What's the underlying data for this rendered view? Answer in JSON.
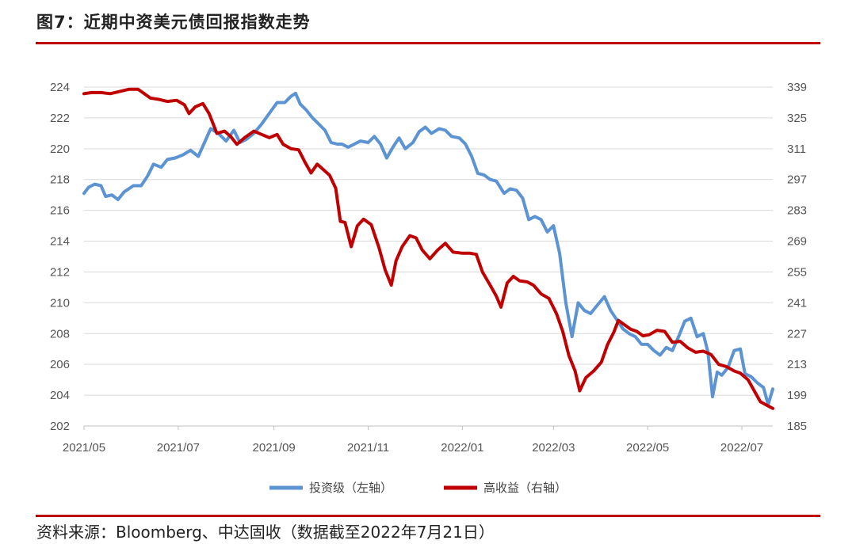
{
  "figure": {
    "title": "图7：近期中资美元债回报指数走势",
    "source": "资料来源：Bloomberg、中达固收（数据截至2022年7月21日）"
  },
  "colors": {
    "investment_grade": "#5b93d3",
    "high_yield": "#c00000",
    "grid": "#d9d9d9",
    "rule": "#c00000"
  },
  "chart_data": {
    "type": "line",
    "title": "",
    "x_ticks": [
      "2021/05",
      "2021/07",
      "2021/09",
      "2021/11",
      "2022/01",
      "2022/03",
      "2022/05",
      "2022/07"
    ],
    "x_range": [
      "2021-05-01",
      "2022-07-21"
    ],
    "y_left": {
      "ticks": [
        "202",
        "204",
        "206",
        "208",
        "210",
        "212",
        "214",
        "216",
        "218",
        "220",
        "222",
        "224"
      ],
      "range": [
        202,
        224
      ]
    },
    "y_right": {
      "ticks": [
        "185",
        "199",
        "213",
        "227",
        "241",
        "255",
        "269",
        "283",
        "297",
        "311",
        "325",
        "339"
      ],
      "range": [
        185,
        339
      ]
    },
    "grid": true,
    "legend_position": "bottom",
    "series": [
      {
        "name": "投资级（左轴）",
        "axis": "left",
        "color": "#5b93d3",
        "points": [
          [
            "2021-05-01",
            217.1
          ],
          [
            "2021-05-04",
            217.5
          ],
          [
            "2021-05-08",
            217.7
          ],
          [
            "2021-05-12",
            217.6
          ],
          [
            "2021-05-15",
            216.9
          ],
          [
            "2021-05-19",
            217.0
          ],
          [
            "2021-05-23",
            216.7
          ],
          [
            "2021-05-27",
            217.2
          ],
          [
            "2021-06-02",
            217.6
          ],
          [
            "2021-06-07",
            217.6
          ],
          [
            "2021-06-11",
            218.2
          ],
          [
            "2021-06-15",
            219.0
          ],
          [
            "2021-06-20",
            218.8
          ],
          [
            "2021-06-24",
            219.3
          ],
          [
            "2021-06-29",
            219.4
          ],
          [
            "2021-07-04",
            219.6
          ],
          [
            "2021-07-09",
            219.9
          ],
          [
            "2021-07-14",
            219.5
          ],
          [
            "2021-07-18",
            220.4
          ],
          [
            "2021-07-22",
            221.3
          ],
          [
            "2021-07-27",
            221.0
          ],
          [
            "2021-08-01",
            220.5
          ],
          [
            "2021-08-06",
            221.2
          ],
          [
            "2021-08-10",
            220.4
          ],
          [
            "2021-08-14",
            220.6
          ],
          [
            "2021-08-19",
            221.0
          ],
          [
            "2021-08-24",
            221.6
          ],
          [
            "2021-08-29",
            222.3
          ],
          [
            "2021-09-03",
            223.0
          ],
          [
            "2021-09-08",
            223.0
          ],
          [
            "2021-09-12",
            223.4
          ],
          [
            "2021-09-15",
            223.6
          ],
          [
            "2021-09-18",
            222.9
          ],
          [
            "2021-09-22",
            222.5
          ],
          [
            "2021-09-26",
            222.0
          ],
          [
            "2021-09-30",
            221.6
          ],
          [
            "2021-10-04",
            221.2
          ],
          [
            "2021-10-08",
            220.4
          ],
          [
            "2021-10-12",
            220.3
          ],
          [
            "2021-10-15",
            220.3
          ],
          [
            "2021-10-19",
            220.1
          ],
          [
            "2021-10-23",
            220.3
          ],
          [
            "2021-10-27",
            220.5
          ],
          [
            "2021-11-01",
            220.4
          ],
          [
            "2021-11-05",
            220.8
          ],
          [
            "2021-11-09",
            220.3
          ],
          [
            "2021-11-13",
            219.4
          ],
          [
            "2021-11-17",
            220.1
          ],
          [
            "2021-11-21",
            220.7
          ],
          [
            "2021-11-25",
            220.0
          ],
          [
            "2021-11-30",
            220.4
          ],
          [
            "2021-12-04",
            221.1
          ],
          [
            "2021-12-08",
            221.4
          ],
          [
            "2021-12-12",
            221.0
          ],
          [
            "2021-12-17",
            221.3
          ],
          [
            "2021-12-21",
            221.2
          ],
          [
            "2021-12-25",
            220.8
          ],
          [
            "2021-12-30",
            220.7
          ],
          [
            "2022-01-03",
            220.3
          ],
          [
            "2022-01-07",
            219.5
          ],
          [
            "2022-01-11",
            218.4
          ],
          [
            "2022-01-15",
            218.3
          ],
          [
            "2022-01-19",
            218.0
          ],
          [
            "2022-01-23",
            217.9
          ],
          [
            "2022-01-28",
            217.1
          ],
          [
            "2022-02-01",
            217.4
          ],
          [
            "2022-02-05",
            217.3
          ],
          [
            "2022-02-09",
            216.8
          ],
          [
            "2022-02-13",
            215.4
          ],
          [
            "2022-02-17",
            215.6
          ],
          [
            "2022-02-21",
            215.4
          ],
          [
            "2022-02-25",
            214.6
          ],
          [
            "2022-03-01",
            215.0
          ],
          [
            "2022-03-05",
            213.2
          ],
          [
            "2022-03-09",
            210.0
          ],
          [
            "2022-03-13",
            207.8
          ],
          [
            "2022-03-17",
            210.0
          ],
          [
            "2022-03-21",
            209.5
          ],
          [
            "2022-03-25",
            209.3
          ],
          [
            "2022-03-29",
            209.8
          ],
          [
            "2022-04-03",
            210.4
          ],
          [
            "2022-04-07",
            209.5
          ],
          [
            "2022-04-11",
            208.9
          ],
          [
            "2022-04-15",
            208.3
          ],
          [
            "2022-04-19",
            208.0
          ],
          [
            "2022-04-23",
            207.8
          ],
          [
            "2022-04-27",
            207.3
          ],
          [
            "2022-05-01",
            207.3
          ],
          [
            "2022-05-05",
            206.9
          ],
          [
            "2022-05-09",
            206.6
          ],
          [
            "2022-05-13",
            207.1
          ],
          [
            "2022-05-17",
            206.9
          ],
          [
            "2022-05-21",
            207.8
          ],
          [
            "2022-05-25",
            208.8
          ],
          [
            "2022-05-29",
            209.0
          ],
          [
            "2022-06-02",
            207.8
          ],
          [
            "2022-06-06",
            208.0
          ],
          [
            "2022-06-09",
            206.8
          ],
          [
            "2022-06-12",
            203.9
          ],
          [
            "2022-06-15",
            205.5
          ],
          [
            "2022-06-18",
            205.3
          ],
          [
            "2022-06-22",
            205.8
          ],
          [
            "2022-06-26",
            206.9
          ],
          [
            "2022-06-30",
            207.0
          ],
          [
            "2022-07-03",
            205.4
          ],
          [
            "2022-07-07",
            205.2
          ],
          [
            "2022-07-11",
            204.8
          ],
          [
            "2022-07-15",
            204.5
          ],
          [
            "2022-07-18",
            203.4
          ],
          [
            "2022-07-21",
            204.4
          ]
        ]
      },
      {
        "name": "高收益（右轴）",
        "axis": "right",
        "color": "#c00000",
        "points": [
          [
            "2021-05-01",
            336
          ],
          [
            "2021-05-06",
            336.5
          ],
          [
            "2021-05-12",
            336.5
          ],
          [
            "2021-05-18",
            336
          ],
          [
            "2021-05-24",
            337
          ],
          [
            "2021-05-30",
            338
          ],
          [
            "2021-06-05",
            338
          ],
          [
            "2021-06-09",
            336
          ],
          [
            "2021-06-13",
            334
          ],
          [
            "2021-06-18",
            333.5
          ],
          [
            "2021-06-24",
            332.5
          ],
          [
            "2021-06-30",
            333
          ],
          [
            "2021-07-05",
            331
          ],
          [
            "2021-07-08",
            327
          ],
          [
            "2021-07-12",
            330
          ],
          [
            "2021-07-17",
            331.5
          ],
          [
            "2021-07-21",
            327
          ],
          [
            "2021-07-26",
            318
          ],
          [
            "2021-07-31",
            319
          ],
          [
            "2021-08-04",
            316.5
          ],
          [
            "2021-08-08",
            313
          ],
          [
            "2021-08-13",
            316
          ],
          [
            "2021-08-19",
            319
          ],
          [
            "2021-08-24",
            317.5
          ],
          [
            "2021-08-29",
            316
          ],
          [
            "2021-09-03",
            317.5
          ],
          [
            "2021-09-07",
            313
          ],
          [
            "2021-09-12",
            311
          ],
          [
            "2021-09-17",
            310.5
          ],
          [
            "2021-09-21",
            305
          ],
          [
            "2021-09-25",
            300
          ],
          [
            "2021-09-29",
            304
          ],
          [
            "2021-10-03",
            301.5
          ],
          [
            "2021-10-07",
            299
          ],
          [
            "2021-10-11",
            293
          ],
          [
            "2021-10-14",
            278
          ],
          [
            "2021-10-17",
            277.5
          ],
          [
            "2021-10-21",
            266.5
          ],
          [
            "2021-10-25",
            276
          ],
          [
            "2021-10-29",
            279
          ],
          [
            "2021-11-03",
            276.5
          ],
          [
            "2021-11-08",
            266
          ],
          [
            "2021-11-12",
            256
          ],
          [
            "2021-11-16",
            249
          ],
          [
            "2021-11-19",
            260
          ],
          [
            "2021-11-23",
            266.5
          ],
          [
            "2021-11-28",
            271.5
          ],
          [
            "2021-12-02",
            270.5
          ],
          [
            "2021-12-06",
            265
          ],
          [
            "2021-12-11",
            261
          ],
          [
            "2021-12-16",
            265
          ],
          [
            "2021-12-21",
            268
          ],
          [
            "2021-12-26",
            264
          ],
          [
            "2022-01-01",
            263.5
          ],
          [
            "2022-01-06",
            263.5
          ],
          [
            "2022-01-10",
            263
          ],
          [
            "2022-01-14",
            255
          ],
          [
            "2022-01-19",
            249
          ],
          [
            "2022-01-23",
            244
          ],
          [
            "2022-01-26",
            239
          ],
          [
            "2022-01-30",
            250
          ],
          [
            "2022-02-03",
            253
          ],
          [
            "2022-02-07",
            251
          ],
          [
            "2022-02-12",
            250.5
          ],
          [
            "2022-02-16",
            249
          ],
          [
            "2022-02-21",
            245
          ],
          [
            "2022-02-26",
            243
          ],
          [
            "2022-03-03",
            236
          ],
          [
            "2022-03-07",
            228
          ],
          [
            "2022-03-11",
            217
          ],
          [
            "2022-03-15",
            210
          ],
          [
            "2022-03-18",
            201
          ],
          [
            "2022-03-22",
            207
          ],
          [
            "2022-03-27",
            210
          ],
          [
            "2022-04-01",
            214
          ],
          [
            "2022-04-05",
            222
          ],
          [
            "2022-04-09",
            227.5
          ],
          [
            "2022-04-12",
            233
          ],
          [
            "2022-04-16",
            231
          ],
          [
            "2022-04-20",
            229
          ],
          [
            "2022-04-24",
            228
          ],
          [
            "2022-04-28",
            226
          ],
          [
            "2022-05-02",
            226.5
          ],
          [
            "2022-05-07",
            228.5
          ],
          [
            "2022-05-12",
            228
          ],
          [
            "2022-05-17",
            223
          ],
          [
            "2022-05-22",
            223.5
          ],
          [
            "2022-05-27",
            220.5
          ],
          [
            "2022-06-01",
            218.5
          ],
          [
            "2022-06-06",
            219
          ],
          [
            "2022-06-11",
            217.5
          ],
          [
            "2022-06-16",
            213
          ],
          [
            "2022-06-21",
            212
          ],
          [
            "2022-06-26",
            210
          ],
          [
            "2022-06-30",
            209
          ],
          [
            "2022-07-05",
            206
          ],
          [
            "2022-07-09",
            201
          ],
          [
            "2022-07-13",
            196
          ],
          [
            "2022-07-17",
            194.5
          ],
          [
            "2022-07-21",
            193
          ]
        ]
      }
    ]
  }
}
